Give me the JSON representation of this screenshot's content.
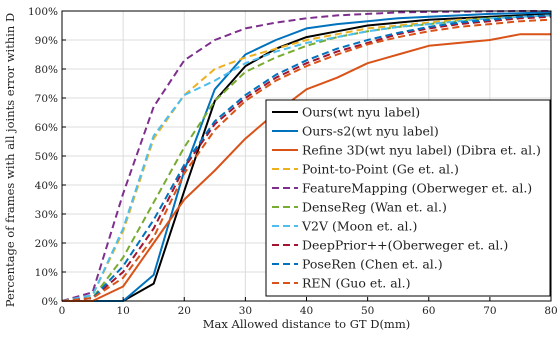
{
  "chart_data": {
    "type": "line",
    "xlabel": "Max Allowed distance to GT D(mm)",
    "ylabel": "Percentage of frames with all joints error within D",
    "xlim": [
      0,
      80
    ],
    "ylim": [
      0,
      100
    ],
    "x_ticks": [
      "0",
      "10",
      "20",
      "30",
      "40",
      "50",
      "60",
      "70",
      "80"
    ],
    "y_ticks": [
      "0%",
      "10%",
      "20%",
      "30%",
      "40%",
      "50%",
      "60%",
      "70%",
      "80%",
      "90%",
      "100%"
    ],
    "grid": true,
    "legend_position": "bottom-right",
    "x": [
      0,
      5,
      10,
      15,
      20,
      25,
      30,
      35,
      40,
      45,
      50,
      55,
      60,
      65,
      70,
      75,
      80
    ],
    "series": [
      {
        "name": "Ours(wt nyu label)",
        "color": "#000000",
        "dash": "solid",
        "values": [
          0,
          0,
          0,
          6,
          38,
          69,
          81,
          87,
          91,
          93,
          95,
          96,
          97,
          97.5,
          98,
          98.5,
          99
        ]
      },
      {
        "name": "Ours-s2(wt nyu label)",
        "color": "#0072BD",
        "dash": "solid",
        "values": [
          0,
          0,
          0,
          9,
          45,
          73,
          85,
          90,
          94,
          95.5,
          96.5,
          97.5,
          98,
          98.5,
          99,
          99.2,
          99.5
        ]
      },
      {
        "name": "Refine 3D(wt nyu label) (Dibra et. al.)",
        "color": "#D95319",
        "dash": "solid",
        "values": [
          0,
          0,
          5,
          20,
          35,
          45,
          56,
          65,
          73,
          77,
          82,
          85,
          88,
          89,
          90,
          92,
          92
        ]
      },
      {
        "name": "Point-to-Point (Ge et. al.)",
        "color": "#EDB120",
        "dash": "dashed",
        "values": [
          0,
          2,
          24,
          56,
          71,
          80,
          84,
          87,
          90,
          92,
          94,
          95,
          96,
          97,
          97.5,
          98,
          98.5
        ]
      },
      {
        "name": "FeatureMapping (Oberweger et. al.)",
        "color": "#7E2F8E",
        "dash": "dashed",
        "values": [
          0,
          3,
          37,
          67,
          83,
          90,
          94,
          96,
          97.5,
          98.5,
          99,
          99.5,
          99.7,
          99.8,
          99.9,
          100,
          100
        ]
      },
      {
        "name": "DenseReg (Wan et. al.)",
        "color": "#77AC30",
        "dash": "dashed",
        "values": [
          0,
          1,
          15,
          34,
          53,
          69,
          79,
          84,
          88,
          91,
          93,
          94.5,
          95.5,
          96.5,
          97.5,
          98,
          98.5
        ]
      },
      {
        "name": "V2V (Moon et. al.)",
        "color": "#4DBEEE",
        "dash": "dashed",
        "values": [
          0,
          2,
          25,
          57,
          71,
          76,
          82,
          86,
          89,
          91,
          93,
          94.5,
          95.5,
          96.5,
          97.5,
          98,
          98.5
        ]
      },
      {
        "name": "DeepPrior++(Oberweger et. al.)",
        "color": "#A2142F",
        "dash": "dashed",
        "values": [
          0,
          1,
          10,
          25,
          46,
          61,
          70,
          77,
          82,
          86,
          89,
          92,
          94,
          95.5,
          96.5,
          97.5,
          98
        ]
      },
      {
        "name": "PoseRen (Chen et. al.)",
        "color": "#0072BD",
        "dash": "dashed",
        "values": [
          0,
          1,
          12,
          28,
          47,
          62,
          71,
          78,
          83,
          87,
          90,
          92.5,
          94.5,
          96,
          97,
          98,
          98.5
        ]
      },
      {
        "name": "REN (Guo et. al.)",
        "color": "#D95319",
        "dash": "dashed",
        "values": [
          0,
          1,
          8,
          22,
          44,
          59,
          69,
          76,
          81,
          85,
          88.5,
          91,
          93,
          94.5,
          95.5,
          96.5,
          97
        ]
      }
    ]
  }
}
